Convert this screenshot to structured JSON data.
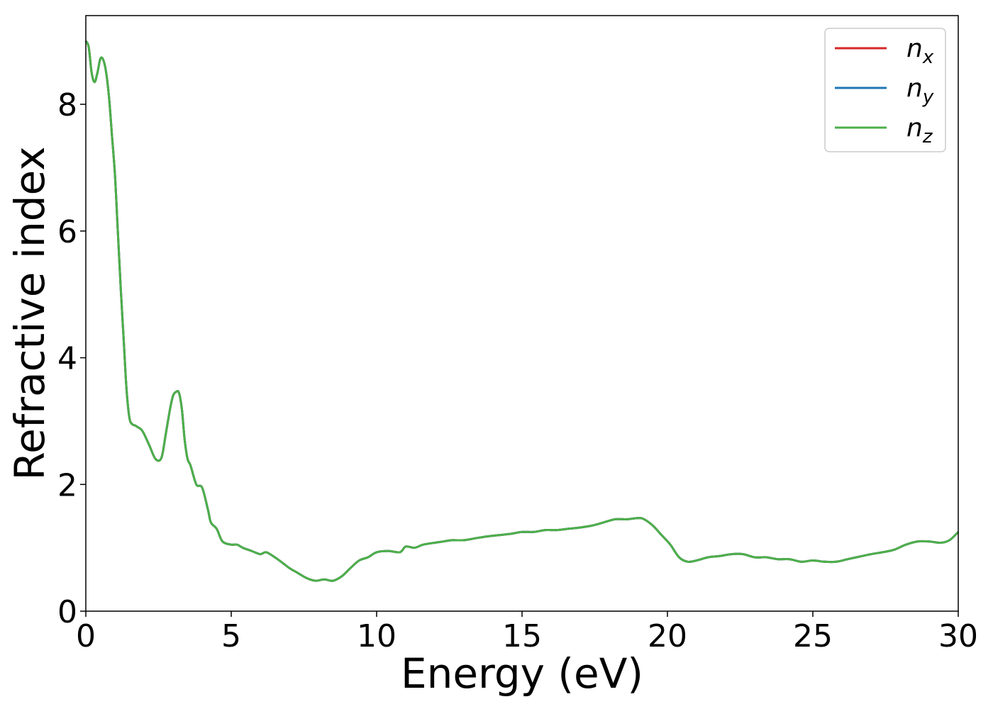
{
  "chart_data": {
    "type": "line",
    "title": "",
    "xlabel": "Energy (eV)",
    "ylabel": "Refractive index",
    "xlim": [
      0,
      30
    ],
    "ylim": [
      0,
      9.4
    ],
    "xticks": [
      0,
      5,
      10,
      15,
      20,
      25,
      30
    ],
    "yticks": [
      0,
      2,
      4,
      6,
      8
    ],
    "grid": false,
    "legend_position": "top-right",
    "series": [
      {
        "name": "n_x",
        "label_base": "n",
        "label_sub": "x",
        "color": "#d62728"
      },
      {
        "name": "n_y",
        "label_base": "n",
        "label_sub": "y",
        "color": "#1f77b4"
      },
      {
        "name": "n_z",
        "label_base": "n",
        "label_sub": "z",
        "color": "#4daf4a"
      }
    ],
    "note_identical_series": true,
    "x": [
      0,
      0.1,
      0.2,
      0.3,
      0.4,
      0.5,
      0.6,
      0.7,
      0.8,
      0.9,
      1.0,
      1.1,
      1.2,
      1.3,
      1.4,
      1.5,
      1.6,
      1.7,
      1.8,
      1.9,
      2.0,
      2.2,
      2.4,
      2.6,
      2.75,
      2.9,
      3.0,
      3.1,
      3.2,
      3.3,
      3.4,
      3.5,
      3.6,
      3.8,
      4.0,
      4.2,
      4.3,
      4.5,
      4.7,
      5.0,
      5.2,
      5.4,
      5.7,
      6.0,
      6.2,
      6.5,
      6.8,
      7.0,
      7.3,
      7.6,
      7.9,
      8.2,
      8.5,
      8.8,
      9.1,
      9.4,
      9.7,
      10.0,
      10.4,
      10.8,
      11.0,
      11.3,
      11.6,
      12.0,
      12.3,
      12.6,
      13.0,
      13.4,
      13.8,
      14.2,
      14.6,
      15.0,
      15.4,
      15.8,
      16.2,
      16.6,
      17.0,
      17.4,
      17.8,
      18.2,
      18.6,
      19.0,
      19.2,
      19.5,
      19.8,
      20.1,
      20.4,
      20.7,
      21.0,
      21.4,
      21.8,
      22.2,
      22.6,
      23.0,
      23.4,
      23.8,
      24.2,
      24.6,
      25.0,
      25.4,
      25.8,
      26.2,
      26.6,
      27.0,
      27.4,
      27.8,
      28.2,
      28.6,
      29.0,
      29.4,
      29.7,
      30.0
    ],
    "y": [
      9.0,
      8.9,
      8.5,
      8.35,
      8.5,
      8.72,
      8.7,
      8.5,
      8.1,
      7.5,
      6.9,
      6.0,
      5.1,
      4.3,
      3.5,
      3.05,
      2.95,
      2.93,
      2.9,
      2.87,
      2.8,
      2.6,
      2.4,
      2.42,
      2.8,
      3.2,
      3.4,
      3.46,
      3.45,
      3.2,
      2.7,
      2.4,
      2.3,
      2.0,
      1.95,
      1.6,
      1.4,
      1.3,
      1.1,
      1.05,
      1.05,
      1.0,
      0.95,
      0.9,
      0.93,
      0.85,
      0.75,
      0.68,
      0.6,
      0.52,
      0.48,
      0.5,
      0.48,
      0.55,
      0.68,
      0.8,
      0.85,
      0.93,
      0.95,
      0.93,
      1.02,
      1.0,
      1.05,
      1.08,
      1.1,
      1.12,
      1.12,
      1.15,
      1.18,
      1.2,
      1.22,
      1.25,
      1.25,
      1.28,
      1.28,
      1.3,
      1.32,
      1.35,
      1.4,
      1.45,
      1.45,
      1.47,
      1.45,
      1.35,
      1.2,
      1.05,
      0.85,
      0.78,
      0.8,
      0.85,
      0.87,
      0.9,
      0.9,
      0.85,
      0.85,
      0.82,
      0.82,
      0.78,
      0.8,
      0.78,
      0.78,
      0.82,
      0.86,
      0.9,
      0.93,
      0.97,
      1.05,
      1.1,
      1.1,
      1.08,
      1.12,
      1.25
    ]
  }
}
